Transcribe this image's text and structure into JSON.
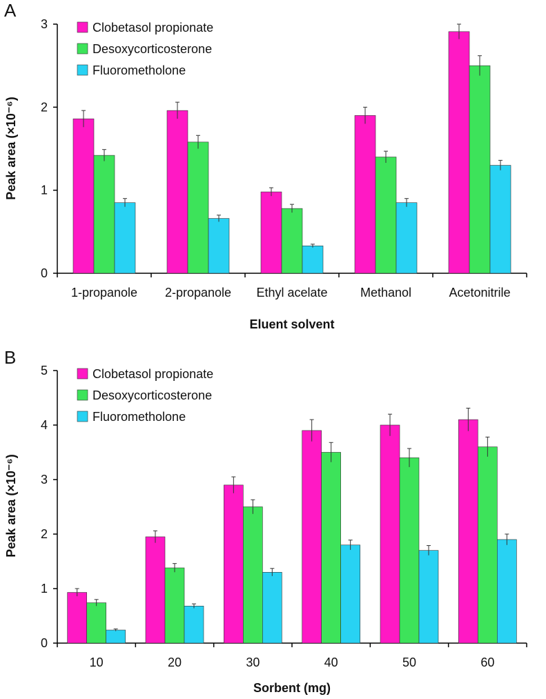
{
  "colors": {
    "clobetasol": "#ff19c4",
    "desoxy": "#3de35a",
    "fluoro": "#28d2f3"
  },
  "chart_data": [
    {
      "type": "bar",
      "panel": "A",
      "title": "",
      "xlabel": "Eluent solvent",
      "ylabel": "Peak area (×10⁻⁶)",
      "ylim": [
        0,
        3
      ],
      "yticks": [
        "0",
        "1",
        "2",
        "3"
      ],
      "categories": [
        "1-propanole",
        "2-propanole",
        "Ethyl acelate",
        "Methanol",
        "Acetonitrile"
      ],
      "series": [
        {
          "name": "Clobetasol propionate",
          "values": [
            1.86,
            1.96,
            0.98,
            1.9,
            2.91
          ],
          "errors": [
            0.1,
            0.1,
            0.05,
            0.1,
            0.09
          ]
        },
        {
          "name": "Desoxycorticosterone",
          "values": [
            1.42,
            1.58,
            0.78,
            1.4,
            2.5
          ],
          "errors": [
            0.07,
            0.08,
            0.05,
            0.07,
            0.12
          ]
        },
        {
          "name": "Fluorometholone",
          "values": [
            0.85,
            0.66,
            0.33,
            0.85,
            1.3
          ],
          "errors": [
            0.05,
            0.04,
            0.02,
            0.05,
            0.06
          ]
        }
      ],
      "legend": "top-left"
    },
    {
      "type": "bar",
      "panel": "B",
      "title": "",
      "xlabel": "Sorbent (mg)",
      "ylabel": "Peak area (×10⁻⁶)",
      "ylim": [
        0,
        5
      ],
      "yticks": [
        "0",
        "1",
        "2",
        "3",
        "4",
        "5"
      ],
      "categories": [
        "10",
        "20",
        "30",
        "40",
        "50",
        "60"
      ],
      "series": [
        {
          "name": "Clobetasol propionate",
          "values": [
            0.93,
            1.95,
            2.9,
            3.9,
            4.0,
            4.1
          ],
          "errors": [
            0.07,
            0.11,
            0.15,
            0.2,
            0.2,
            0.21
          ]
        },
        {
          "name": "Desoxycorticosterone",
          "values": [
            0.74,
            1.38,
            2.5,
            3.5,
            3.4,
            3.6
          ],
          "errors": [
            0.06,
            0.08,
            0.13,
            0.18,
            0.17,
            0.18
          ]
        },
        {
          "name": "Fluorometholone",
          "values": [
            0.24,
            0.68,
            1.3,
            1.8,
            1.7,
            1.9
          ],
          "errors": [
            0.02,
            0.04,
            0.07,
            0.09,
            0.09,
            0.1
          ]
        }
      ],
      "legend": "top-left"
    }
  ]
}
